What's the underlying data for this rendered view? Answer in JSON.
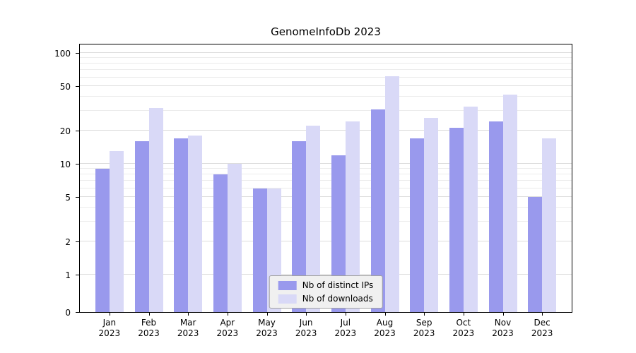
{
  "title": "GenomeInfoDb 2023",
  "colors": {
    "distinct_ips": "#9999ed",
    "downloads": "#d9d9f7",
    "grid_major": "#dcdcdc",
    "grid_minor": "#ececec",
    "axis": "#000000",
    "legend_background": "#f0f0f0",
    "legend_border": "#a0a0a0"
  },
  "chart_data": {
    "type": "bar",
    "title": "GenomeInfoDb 2023",
    "categories": [
      {
        "month": "Jan",
        "year": "2023"
      },
      {
        "month": "Feb",
        "year": "2023"
      },
      {
        "month": "Mar",
        "year": "2023"
      },
      {
        "month": "Apr",
        "year": "2023"
      },
      {
        "month": "May",
        "year": "2023"
      },
      {
        "month": "Jun",
        "year": "2023"
      },
      {
        "month": "Jul",
        "year": "2023"
      },
      {
        "month": "Aug",
        "year": "2023"
      },
      {
        "month": "Sep",
        "year": "2023"
      },
      {
        "month": "Oct",
        "year": "2023"
      },
      {
        "month": "Nov",
        "year": "2023"
      },
      {
        "month": "Dec",
        "year": "2023"
      }
    ],
    "series": [
      {
        "name": "Nb of distinct IPs",
        "color_key": "distinct_ips",
        "values": [
          9,
          16,
          17,
          8,
          6,
          16,
          12,
          31,
          17,
          21,
          24,
          5
        ]
      },
      {
        "name": "Nb of downloads",
        "color_key": "downloads",
        "values": [
          13,
          32,
          18,
          10,
          6,
          22,
          24,
          62,
          26,
          33,
          42,
          17
        ]
      }
    ],
    "yscale": "log",
    "yticks": [
      0,
      1,
      2,
      5,
      10,
      20,
      50,
      100
    ],
    "yticks_minor": [
      3,
      4,
      6,
      7,
      8,
      9,
      30,
      40,
      60,
      70,
      80,
      90
    ],
    "ylim": [
      0,
      100
    ],
    "xlabel": "",
    "ylabel": "",
    "grid": true,
    "legend_position": "lower center"
  }
}
